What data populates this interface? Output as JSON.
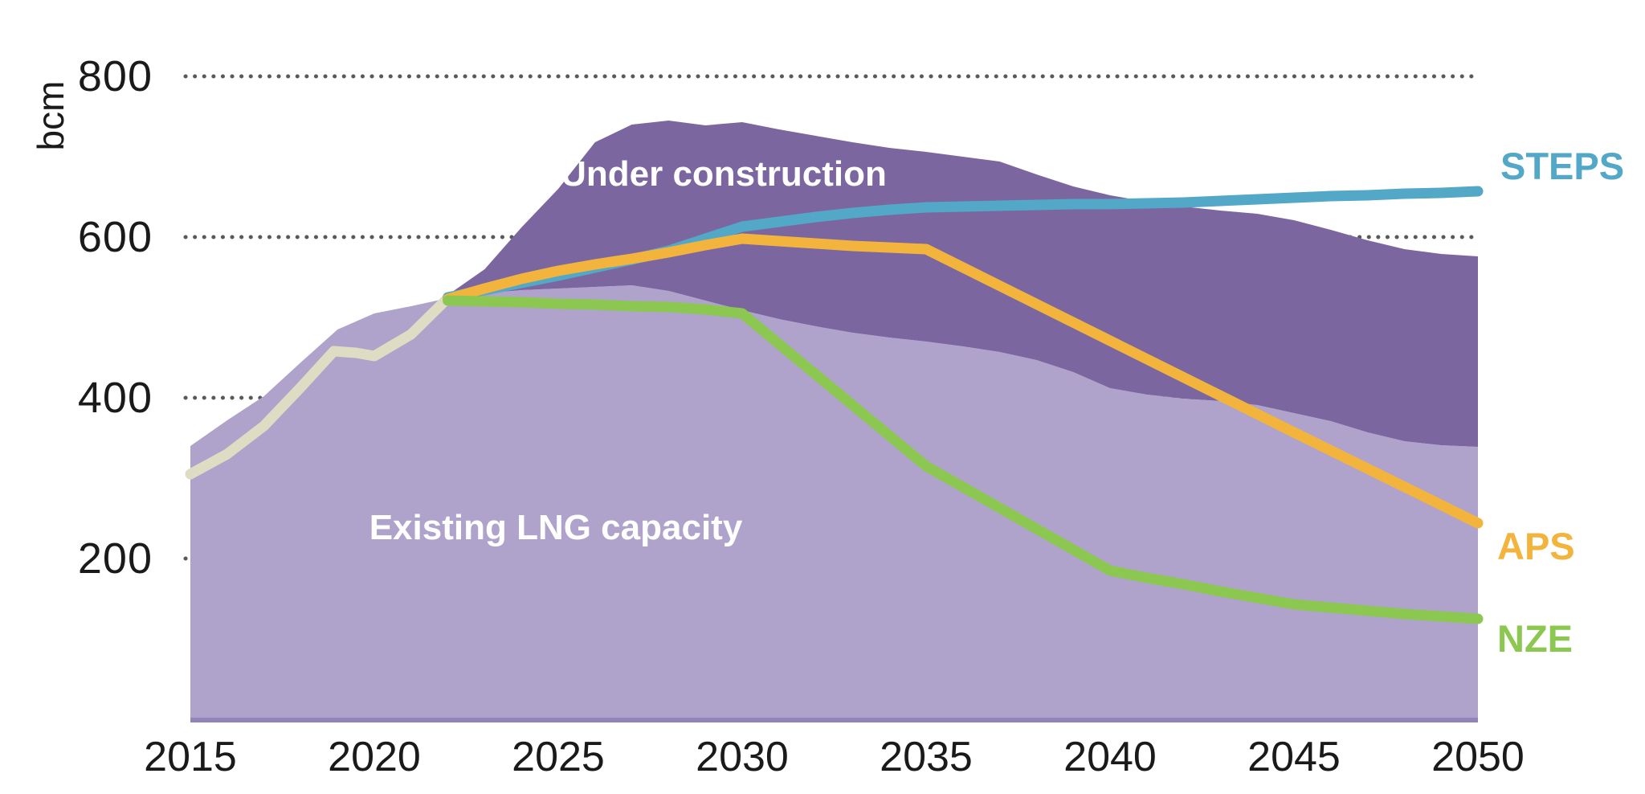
{
  "chart_data": {
    "type": "area",
    "title": "",
    "ylabel": "bcm",
    "xlabel": "",
    "x_range": [
      2015,
      2050
    ],
    "ylim": [
      0,
      800
    ],
    "y_ticks": [
      200,
      400,
      600,
      800
    ],
    "x_ticks": [
      2015,
      2020,
      2025,
      2030,
      2035,
      2040,
      2045,
      2050
    ],
    "grid": "dotted-horizontal",
    "grid_color": "#595959",
    "baseline_color": "#9184BB",
    "legend_position": "right-edge-labels",
    "areas": [
      {
        "name": "existing-lng-capacity",
        "label": "Existing LNG capacity",
        "color": "#AFA3CC",
        "points": [
          [
            2015,
            340
          ],
          [
            2016,
            372
          ],
          [
            2017,
            402
          ],
          [
            2018,
            444
          ],
          [
            2019,
            485
          ],
          [
            2020,
            505
          ],
          [
            2021,
            514
          ],
          [
            2022,
            524
          ],
          [
            2023,
            530
          ],
          [
            2024,
            534
          ],
          [
            2025,
            536
          ],
          [
            2026,
            538
          ],
          [
            2027,
            540
          ],
          [
            2028,
            533
          ],
          [
            2029,
            521
          ],
          [
            2030,
            509
          ],
          [
            2031,
            498
          ],
          [
            2032,
            489
          ],
          [
            2033,
            481
          ],
          [
            2034,
            475
          ],
          [
            2035,
            470
          ],
          [
            2036,
            464
          ],
          [
            2037,
            457
          ],
          [
            2038,
            447
          ],
          [
            2039,
            432
          ],
          [
            2040,
            412
          ],
          [
            2041,
            404
          ],
          [
            2042,
            399
          ],
          [
            2043,
            396
          ],
          [
            2044,
            391
          ],
          [
            2045,
            381
          ],
          [
            2046,
            371
          ],
          [
            2047,
            357
          ],
          [
            2048,
            346
          ],
          [
            2049,
            341
          ],
          [
            2050,
            339
          ]
        ]
      },
      {
        "name": "under-construction",
        "label": "Under construction",
        "color": "#7B66A0",
        "points": [
          [
            2022,
            528
          ],
          [
            2023,
            560
          ],
          [
            2024,
            612
          ],
          [
            2025,
            660
          ],
          [
            2026,
            718
          ],
          [
            2027,
            740
          ],
          [
            2028,
            745
          ],
          [
            2029,
            739
          ],
          [
            2030,
            743
          ],
          [
            2031,
            734
          ],
          [
            2032,
            726
          ],
          [
            2033,
            718
          ],
          [
            2034,
            711
          ],
          [
            2035,
            706
          ],
          [
            2036,
            700
          ],
          [
            2037,
            694
          ],
          [
            2038,
            678
          ],
          [
            2039,
            663
          ],
          [
            2040,
            652
          ],
          [
            2041,
            644
          ],
          [
            2042,
            638
          ],
          [
            2043,
            633
          ],
          [
            2044,
            629
          ],
          [
            2045,
            621
          ],
          [
            2046,
            609
          ],
          [
            2047,
            596
          ],
          [
            2048,
            585
          ],
          [
            2049,
            579
          ],
          [
            2050,
            576
          ]
        ]
      }
    ],
    "lines": [
      {
        "name": "historical",
        "label": "",
        "color": "#DEDCC2",
        "points": [
          [
            2015,
            305
          ],
          [
            2016,
            330
          ],
          [
            2017,
            365
          ],
          [
            2018,
            413
          ],
          [
            2018.9,
            458
          ],
          [
            2019.5,
            456
          ],
          [
            2020,
            452
          ],
          [
            2021,
            479
          ],
          [
            2022,
            524
          ]
        ]
      },
      {
        "name": "STEPS",
        "label": "STEPS",
        "color": "#52A8C6",
        "points": [
          [
            2022,
            525
          ],
          [
            2023,
            534
          ],
          [
            2024,
            543
          ],
          [
            2025,
            552
          ],
          [
            2026,
            562
          ],
          [
            2027,
            572
          ],
          [
            2028,
            583
          ],
          [
            2029,
            598
          ],
          [
            2030,
            613
          ],
          [
            2031,
            619
          ],
          [
            2032,
            625
          ],
          [
            2033,
            630
          ],
          [
            2034,
            634
          ],
          [
            2035,
            637
          ],
          [
            2036,
            638
          ],
          [
            2037,
            639
          ],
          [
            2038,
            640
          ],
          [
            2039,
            641
          ],
          [
            2040,
            641
          ],
          [
            2041,
            642
          ],
          [
            2042,
            643
          ],
          [
            2043,
            645
          ],
          [
            2044,
            647
          ],
          [
            2045,
            649
          ],
          [
            2046,
            651
          ],
          [
            2047,
            652
          ],
          [
            2048,
            654
          ],
          [
            2049,
            655
          ],
          [
            2050,
            657
          ]
        ]
      },
      {
        "name": "APS",
        "label": "APS",
        "color": "#F2B43D",
        "points": [
          [
            2022,
            523
          ],
          [
            2023,
            536
          ],
          [
            2024,
            548
          ],
          [
            2025,
            558
          ],
          [
            2026,
            566
          ],
          [
            2027,
            573
          ],
          [
            2028,
            581
          ],
          [
            2029,
            590
          ],
          [
            2030,
            598
          ],
          [
            2031,
            595
          ],
          [
            2032,
            592
          ],
          [
            2033,
            589
          ],
          [
            2034,
            587
          ],
          [
            2035,
            585
          ],
          [
            2040,
            471
          ],
          [
            2045,
            357
          ],
          [
            2050,
            244
          ]
        ]
      },
      {
        "name": "NZE",
        "label": "NZE",
        "color": "#8CC751",
        "points": [
          [
            2022,
            521
          ],
          [
            2023,
            520
          ],
          [
            2024,
            519
          ],
          [
            2025,
            517
          ],
          [
            2026,
            516
          ],
          [
            2027,
            514
          ],
          [
            2028,
            513
          ],
          [
            2029,
            510
          ],
          [
            2030,
            505
          ],
          [
            2031,
            467
          ],
          [
            2032,
            429
          ],
          [
            2033,
            391
          ],
          [
            2034,
            353
          ],
          [
            2035,
            315
          ],
          [
            2036,
            289
          ],
          [
            2037,
            263
          ],
          [
            2038,
            237
          ],
          [
            2039,
            211
          ],
          [
            2040,
            185
          ],
          [
            2041,
            176
          ],
          [
            2042,
            168
          ],
          [
            2043,
            159
          ],
          [
            2044,
            151
          ],
          [
            2045,
            143
          ],
          [
            2046,
            139
          ],
          [
            2047,
            135
          ],
          [
            2048,
            131
          ],
          [
            2049,
            128
          ],
          [
            2050,
            125
          ]
        ]
      }
    ]
  }
}
